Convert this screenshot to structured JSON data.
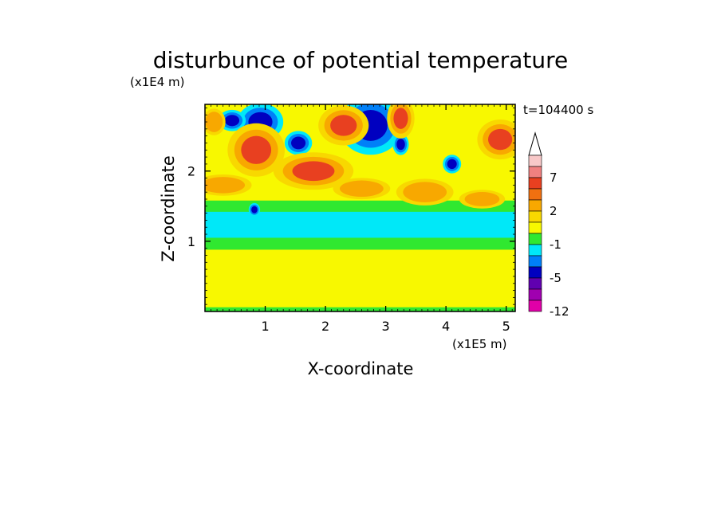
{
  "chart_data": {
    "type": "heatmap",
    "title": "disturbunce of potential temperature",
    "xlabel": "X-coordinate",
    "ylabel": "Z-coordinate",
    "x_unit": "(x1E5 m)",
    "y_unit": "(x1E4 m)",
    "time_label": "t=104400 s",
    "xlim": [
      0,
      5.15
    ],
    "ylim": [
      0,
      2.95
    ],
    "x_ticks": [
      1,
      2,
      3,
      4,
      5
    ],
    "y_ticks": [
      1,
      2
    ],
    "x_tick_labels": [
      "1",
      "2",
      "3",
      "4",
      "5"
    ],
    "y_tick_labels": [
      "1",
      "2"
    ],
    "colorbar": {
      "labeled_ticks": [
        "7",
        "2",
        "-1",
        "-5",
        "-12"
      ],
      "open_top": true,
      "colors_top_to_bottom": [
        "#f8c8c8",
        "#f08080",
        "#e84020",
        "#f07010",
        "#f8a800",
        "#f8d800",
        "#f8f800",
        "#30e830",
        "#00e8f8",
        "#0080f8",
        "#0000c0",
        "#6000b0",
        "#a000b0",
        "#e000a8"
      ]
    },
    "palette": {
      "background": "#f8f800",
      "cool_band": "#00e8f8",
      "green_band": "#30e830",
      "warm": "#f8a800",
      "hot": "#f07010",
      "cold": "#0000c0"
    },
    "features": [
      {
        "kind": "band",
        "x": [
          0,
          5.15
        ],
        "z": [
          1.0,
          1.45
        ],
        "value": -1
      },
      {
        "kind": "band",
        "x": [
          0,
          5.15
        ],
        "z": [
          0.88,
          1.05
        ],
        "value": 0
      },
      {
        "kind": "band",
        "x": [
          0,
          5.15
        ],
        "z": [
          1.42,
          1.58
        ],
        "value": 0
      },
      {
        "kind": "band",
        "x": [
          0,
          5.15
        ],
        "z": [
          0.0,
          0.06
        ],
        "value": 0
      },
      {
        "kind": "blob",
        "x": 2.75,
        "z": 2.65,
        "rx": 0.28,
        "rz": 0.22,
        "value": -5
      },
      {
        "kind": "blob",
        "x": 0.92,
        "z": 2.7,
        "rx": 0.2,
        "rz": 0.14,
        "value": -5
      },
      {
        "kind": "blob",
        "x": 1.55,
        "z": 2.4,
        "rx": 0.12,
        "rz": 0.09,
        "value": -5
      },
      {
        "kind": "blob",
        "x": 0.45,
        "z": 2.72,
        "rx": 0.12,
        "rz": 0.08,
        "value": -5
      },
      {
        "kind": "blob",
        "x": 3.25,
        "z": 2.38,
        "rx": 0.07,
        "rz": 0.08,
        "value": -5
      },
      {
        "kind": "blob",
        "x": 4.1,
        "z": 2.1,
        "rx": 0.08,
        "rz": 0.07,
        "value": -5
      },
      {
        "kind": "blob",
        "x": 0.82,
        "z": 1.45,
        "rx": 0.05,
        "rz": 0.05,
        "value": -5
      },
      {
        "kind": "blob",
        "x": 1.8,
        "z": 2.0,
        "rx": 0.35,
        "rz": 0.14,
        "value": 5
      },
      {
        "kind": "blob",
        "x": 2.3,
        "z": 2.65,
        "rx": 0.22,
        "rz": 0.15,
        "value": 5
      },
      {
        "kind": "blob",
        "x": 3.25,
        "z": 2.75,
        "rx": 0.12,
        "rz": 0.15,
        "value": 5
      },
      {
        "kind": "blob",
        "x": 0.85,
        "z": 2.3,
        "rx": 0.25,
        "rz": 0.2,
        "value": 5
      },
      {
        "kind": "blob",
        "x": 4.9,
        "z": 2.45,
        "rx": 0.2,
        "rz": 0.15,
        "value": 5
      },
      {
        "kind": "blob",
        "x": 3.65,
        "z": 1.7,
        "rx": 0.25,
        "rz": 0.1,
        "value": 3
      },
      {
        "kind": "blob",
        "x": 2.6,
        "z": 1.75,
        "rx": 0.25,
        "rz": 0.08,
        "value": 3
      },
      {
        "kind": "blob",
        "x": 4.6,
        "z": 1.6,
        "rx": 0.2,
        "rz": 0.07,
        "value": 3
      },
      {
        "kind": "blob",
        "x": 0.3,
        "z": 1.8,
        "rx": 0.25,
        "rz": 0.08,
        "value": 3
      },
      {
        "kind": "blob",
        "x": 0.15,
        "z": 2.7,
        "rx": 0.1,
        "rz": 0.1,
        "value": 3
      }
    ]
  }
}
